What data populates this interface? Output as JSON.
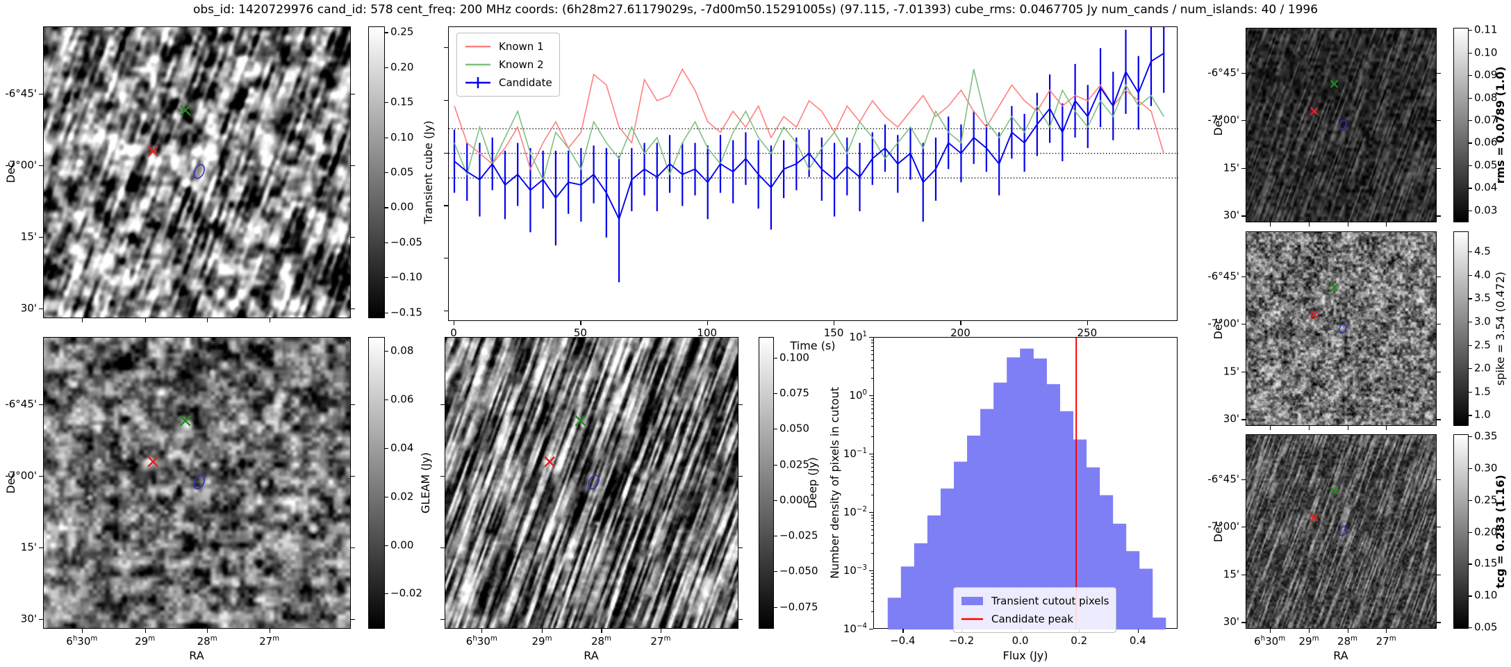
{
  "figure": {
    "title": "obs_id: 1420729976 cand_id: 578 cent_freq: 200 MHz coords: (6h28m27.61179029s, -7d00m50.15291005s) (97.115, -7.01393) cube_rms: 0.0467705 Jy num_cands / num_islands: 40 / 1996"
  },
  "colors": {
    "known1": "#ff7f7f",
    "known2": "#7fbf7f",
    "candidate": "#0000ee",
    "hist_fill": "#7f7ff5",
    "peak_line": "#ff0000",
    "marker_green": "#1e8c1e",
    "marker_red": "#e02020",
    "marker_blue": "#3030bb",
    "dotted_line": "#000000"
  },
  "axes": {
    "dec_label": "Dec",
    "ra_label": "RA",
    "dec_ticks": [
      "-6°45'",
      "-7°00'",
      "15'",
      "30'"
    ],
    "ra_ticks": [
      "6h30m",
      "29m",
      "28m",
      "27m"
    ]
  },
  "markers": {
    "known1_red_x": [
      0.355,
      0.425
    ],
    "known2_green_x": [
      0.46,
      0.285
    ],
    "candidate_blue_ellipse": [
      0.505,
      0.495
    ]
  },
  "colorbars": {
    "transient": {
      "label": "Transient cube (Jy)",
      "bold": false,
      "ticks": [
        "0.25",
        "0.20",
        "0.15",
        "0.10",
        "0.05",
        "0.00",
        "−0.05",
        "−0.10",
        "−0.15"
      ]
    },
    "gleam": {
      "label": "GLEAM (Jy)",
      "bold": false,
      "ticks": [
        "0.08",
        "0.06",
        "0.04",
        "0.02",
        "0.00",
        "−0.02"
      ]
    },
    "deep": {
      "label": "Deep (Jy)",
      "bold": false,
      "ticks": [
        "0.100",
        "0.075",
        "0.050",
        "0.025",
        "0.000",
        "−0.025",
        "−0.050",
        "−0.075"
      ]
    },
    "rms": {
      "label": "rms = 0.0789 (1.0)",
      "bold": true,
      "ticks": [
        "0.11",
        "0.10",
        "0.09",
        "0.08",
        "0.07",
        "0.06",
        "0.05",
        "0.04",
        "0.03"
      ]
    },
    "spike": {
      "label": "spike = 3.54 (0.472)",
      "bold": false,
      "ticks": [
        "4.5",
        "4.0",
        "3.5",
        "3.0",
        "2.5",
        "2.0",
        "1.5",
        "1.0"
      ]
    },
    "tcg": {
      "label": "tcg = 0.283 (1.16)",
      "bold": true,
      "ticks": [
        "0.35",
        "0.30",
        "0.25",
        "0.20",
        "0.15",
        "0.10",
        "0.05"
      ]
    }
  },
  "chart_data": [
    {
      "type": "line",
      "name": "light_curve",
      "xlabel": "Time (s)",
      "ylabel": "",
      "xlim": [
        -2.2,
        285.7
      ],
      "ylim": [
        -0.32,
        0.24
      ],
      "x_ticks": [
        0,
        50,
        100,
        150,
        200,
        250
      ],
      "y_ticks_unlabeled": [
        0.2,
        0.1,
        0.0,
        -0.1,
        -0.2,
        -0.3
      ],
      "dotted_hlines": [
        0.0468,
        0.0,
        -0.0468
      ],
      "legend_position": "upper left",
      "legend": [
        "Known 1",
        "Known 2",
        "Candidate"
      ],
      "x": [
        0,
        5,
        10,
        15,
        20,
        25,
        30,
        35,
        40,
        45,
        50,
        55,
        60,
        65,
        70,
        75,
        80,
        85,
        90,
        95,
        100,
        105,
        110,
        115,
        120,
        125,
        130,
        135,
        140,
        145,
        150,
        155,
        160,
        165,
        170,
        175,
        180,
        185,
        190,
        195,
        200,
        205,
        210,
        215,
        220,
        225,
        230,
        235,
        240,
        245,
        250,
        255,
        260,
        265,
        270,
        275,
        280
      ],
      "series": [
        {
          "name": "Known 1",
          "color_key": "known1",
          "values": [
            0.09,
            0.02,
            0.0,
            -0.02,
            0.01,
            0.05,
            -0.03,
            0.02,
            0.06,
            0.01,
            0.04,
            0.15,
            0.13,
            0.05,
            0.02,
            0.14,
            0.1,
            0.11,
            0.16,
            0.12,
            0.06,
            0.04,
            0.08,
            0.05,
            0.09,
            0.03,
            0.07,
            0.05,
            0.1,
            0.08,
            0.04,
            0.09,
            0.06,
            0.1,
            0.07,
            0.05,
            0.08,
            0.11,
            0.07,
            0.09,
            0.12,
            0.08,
            0.05,
            0.09,
            0.13,
            0.1,
            0.08,
            0.12,
            0.09,
            0.11,
            0.1,
            0.13,
            0.09,
            0.12,
            0.1,
            0.08,
            0.0
          ]
        },
        {
          "name": "Known 2",
          "color_key": "known2",
          "values": [
            0.02,
            -0.04,
            0.05,
            -0.02,
            0.03,
            0.08,
            0.0,
            -0.05,
            0.04,
            0.01,
            -0.03,
            0.06,
            0.02,
            -0.01,
            0.05,
            0.0,
            0.03,
            -0.04,
            0.02,
            0.06,
            0.01,
            -0.02,
            0.04,
            0.08,
            0.03,
            0.0,
            0.05,
            0.02,
            -0.03,
            0.01,
            0.04,
            0.0,
            0.06,
            0.03,
            -0.01,
            0.02,
            0.05,
            0.01,
            0.08,
            0.04,
            0.02,
            0.16,
            0.06,
            0.03,
            0.07,
            0.04,
            0.09,
            0.05,
            0.12,
            0.08,
            0.05,
            0.1,
            0.07,
            0.13,
            0.09,
            0.11,
            0.07
          ]
        },
        {
          "name": "Candidate",
          "color_key": "candidate",
          "values": [
            -0.015,
            -0.035,
            -0.05,
            -0.02,
            -0.06,
            -0.04,
            -0.07,
            -0.05,
            -0.085,
            -0.055,
            -0.06,
            -0.04,
            -0.075,
            -0.125,
            -0.05,
            -0.03,
            -0.045,
            -0.02,
            -0.04,
            -0.03,
            -0.055,
            -0.02,
            -0.035,
            -0.01,
            -0.04,
            -0.065,
            -0.03,
            -0.02,
            0.0,
            -0.03,
            -0.05,
            -0.025,
            -0.045,
            -0.01,
            0.01,
            -0.02,
            0.0,
            -0.055,
            -0.03,
            0.02,
            0.0,
            0.03,
            0.01,
            -0.02,
            0.04,
            0.02,
            0.055,
            0.085,
            0.04,
            0.1,
            0.07,
            0.125,
            0.09,
            0.155,
            0.115,
            0.175,
            0.19
          ],
          "errors": [
            0.06,
            0.055,
            0.07,
            0.05,
            0.065,
            0.06,
            0.08,
            0.055,
            0.09,
            0.06,
            0.07,
            0.055,
            0.085,
            0.12,
            0.06,
            0.05,
            0.065,
            0.055,
            0.06,
            0.05,
            0.07,
            0.055,
            0.06,
            0.05,
            0.065,
            0.08,
            0.055,
            0.05,
            0.045,
            0.06,
            0.07,
            0.055,
            0.065,
            0.05,
            0.045,
            0.055,
            0.05,
            0.075,
            0.06,
            0.05,
            0.055,
            0.05,
            0.045,
            0.06,
            0.05,
            0.055,
            0.06,
            0.065,
            0.055,
            0.07,
            0.06,
            0.075,
            0.065,
            0.08,
            0.07,
            0.085,
            0.075
          ]
        }
      ]
    },
    {
      "type": "bar",
      "name": "pixel_histogram",
      "xlabel": "Flux (Jy)",
      "ylabel": "Number density of pixels in cutout",
      "xlim": [
        -0.5,
        0.535
      ],
      "ylog": true,
      "ylim": [
        0.0001,
        10
      ],
      "x_ticks": [
        "−0.4",
        "−0.2",
        "0.0",
        "0.2",
        "0.4"
      ],
      "x_tick_values": [
        -0.4,
        -0.2,
        0.0,
        0.2,
        0.4
      ],
      "y_ticks": [
        "10^1",
        "10^0",
        "10^-1",
        "10^-2",
        "10^-3",
        "10^-4"
      ],
      "bin_width": 0.0465,
      "bin_centers": [
        -0.43,
        -0.385,
        -0.34,
        -0.295,
        -0.25,
        -0.205,
        -0.16,
        -0.115,
        -0.07,
        -0.025,
        0.02,
        0.065,
        0.11,
        0.155,
        0.2,
        0.245,
        0.29,
        0.335,
        0.38,
        0.425,
        0.47
      ],
      "densities": [
        0.00035,
        0.0012,
        0.003,
        0.009,
        0.026,
        0.075,
        0.21,
        0.6,
        1.7,
        4.6,
        6.5,
        4.4,
        1.6,
        0.55,
        0.18,
        0.06,
        0.02,
        0.0065,
        0.0022,
        0.0011,
        0.00016
      ],
      "candidate_peak": 0.188,
      "legend": [
        "Transient cutout pixels",
        "Candidate peak"
      ],
      "legend_position": "lower center"
    }
  ]
}
